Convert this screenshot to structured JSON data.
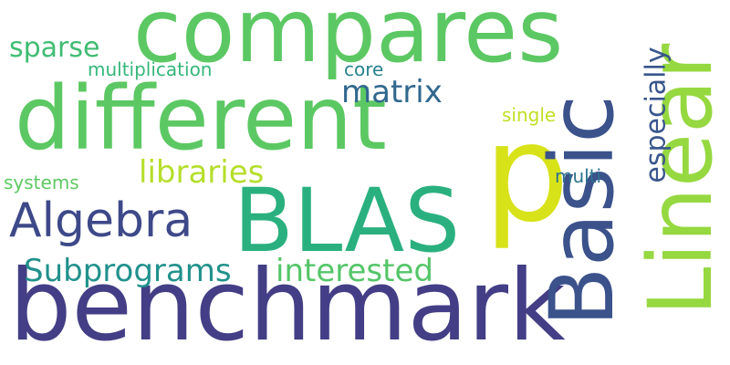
{
  "words": [
    {
      "id": "compares",
      "text": "compares",
      "color": "#5cc863"
    },
    {
      "id": "different",
      "text": "different",
      "color": "#5cc863"
    },
    {
      "id": "benchmark",
      "text": "benchmark",
      "color": "#433e85"
    },
    {
      "id": "blas",
      "text": "BLAS",
      "color": "#2ab07f"
    },
    {
      "id": "p",
      "text": "p",
      "color": "#d8e219"
    },
    {
      "id": "basic",
      "text": "Basic",
      "color": "#3b528b"
    },
    {
      "id": "linear",
      "text": "Linear",
      "color": "#95d840"
    },
    {
      "id": "algebra",
      "text": "Algebra",
      "color": "#3e4989"
    },
    {
      "id": "subprograms",
      "text": "Subprograms",
      "color": "#21918c"
    },
    {
      "id": "interested",
      "text": "interested",
      "color": "#54c568"
    },
    {
      "id": "libraries",
      "text": "libraries",
      "color": "#b5de2b"
    },
    {
      "id": "matrix",
      "text": "matrix",
      "color": "#31688e"
    },
    {
      "id": "sparse",
      "text": "sparse",
      "color": "#3fbc73"
    },
    {
      "id": "multiplication",
      "text": "multiplication",
      "color": "#35b779"
    },
    {
      "id": "core",
      "text": "core",
      "color": "#26828e"
    },
    {
      "id": "single",
      "text": "single",
      "color": "#c2df23"
    },
    {
      "id": "systems",
      "text": "systems",
      "color": "#5ec962"
    },
    {
      "id": "multi",
      "text": "multi",
      "color": "#2c728e"
    },
    {
      "id": "especially",
      "text": "especially",
      "color": "#39568c"
    }
  ]
}
